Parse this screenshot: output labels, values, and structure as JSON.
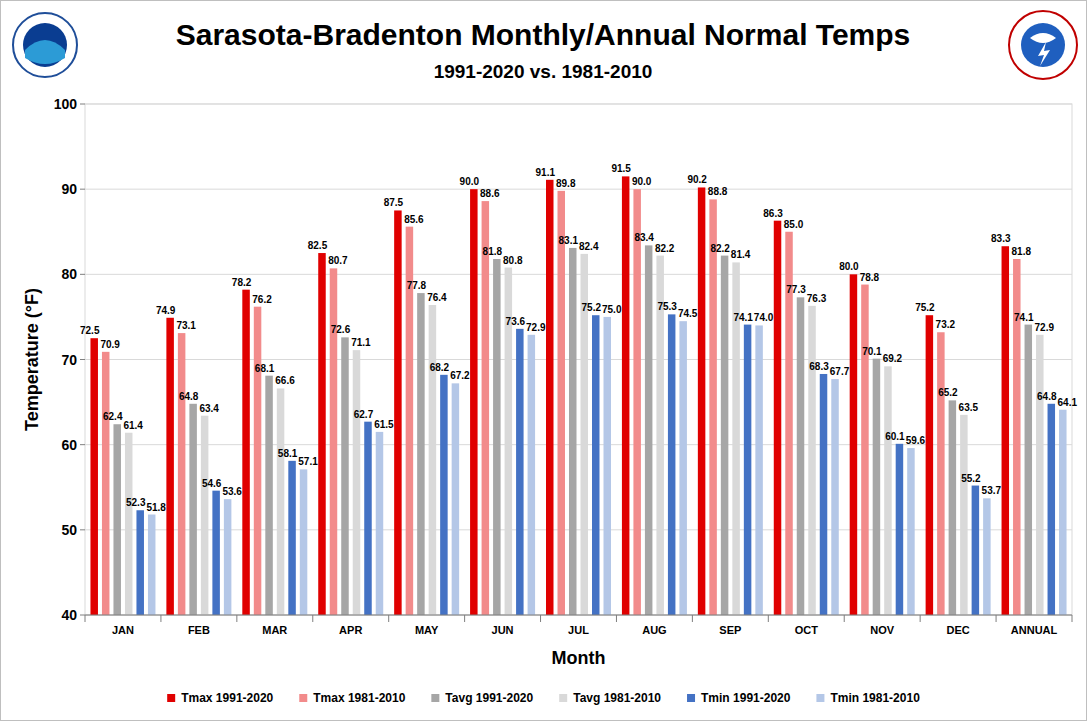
{
  "chart_data": {
    "type": "bar",
    "title": "Sarasota-Bradenton Monthly/Annual Normal Temps",
    "subtitle": "1991-2020 vs. 1981-2010",
    "x_label": "Month",
    "y_label": "Temperature (°F)",
    "categories": [
      "JAN",
      "FEB",
      "MAR",
      "APR",
      "MAY",
      "JUN",
      "JUL",
      "AUG",
      "SEP",
      "OCT",
      "NOV",
      "DEC",
      "ANNUAL"
    ],
    "series": [
      {
        "name": "Tmax 1991-2020",
        "color": "#e00000",
        "values": [
          72.5,
          74.9,
          78.2,
          82.5,
          87.5,
          90.0,
          91.1,
          91.5,
          90.2,
          86.3,
          80.0,
          75.2,
          83.3
        ],
        "value_labels": [
          "72.5",
          "74.9",
          "78.2",
          "82.5",
          "87.5",
          "90.0",
          "91.1",
          "91.5",
          "90.2",
          "86.3",
          "80.0",
          "75.2",
          "83.3"
        ]
      },
      {
        "name": "Tmax 1981-2010",
        "color": "#f28b8b",
        "values": [
          70.9,
          73.1,
          76.2,
          80.7,
          85.6,
          88.6,
          89.8,
          90.0,
          88.8,
          85.0,
          78.8,
          73.2,
          81.8
        ],
        "value_labels": [
          "70.9",
          "73.1",
          "76.2",
          "80.7",
          "85.6",
          "88.6",
          "89.8",
          "90.0",
          "88.8",
          "85.0",
          "78.8",
          "73.2",
          "81.8"
        ]
      },
      {
        "name": "Tavg 1991-2020",
        "color": "#a6a6a6",
        "values": [
          62.4,
          64.8,
          68.1,
          72.6,
          77.8,
          81.8,
          83.1,
          83.4,
          82.2,
          77.3,
          70.1,
          65.2,
          74.1
        ],
        "value_labels": [
          "62.4",
          "64.8",
          "68.1",
          "72.6",
          "77.8",
          "81.8",
          "83.1",
          "83.4",
          "82.2",
          "77.3",
          "70.1",
          "65.2",
          "74.1"
        ]
      },
      {
        "name": "Tavg 1981-2010",
        "color": "#d9d9d9",
        "values": [
          61.4,
          63.4,
          66.6,
          71.1,
          76.4,
          80.8,
          82.4,
          82.2,
          81.4,
          76.3,
          69.2,
          63.5,
          72.9
        ],
        "value_labels": [
          "61.4",
          "63.4",
          "66.6",
          "71.1",
          "76.4",
          "80.8",
          "82.4",
          "82.2",
          "81.4",
          "76.3",
          "69.2",
          "63.5",
          "72.9"
        ]
      },
      {
        "name": "Tmin 1991-2020",
        "color": "#4472c4",
        "values": [
          52.3,
          54.6,
          58.1,
          62.7,
          68.2,
          73.6,
          75.2,
          75.3,
          74.1,
          68.3,
          60.1,
          55.2,
          64.8
        ],
        "value_labels": [
          "52.3",
          "54.6",
          "58.1",
          "62.7",
          "68.2",
          "73.6",
          "75.2",
          "75.3",
          "74.1",
          "68.3",
          "60.1",
          "55.2",
          "64.8"
        ]
      },
      {
        "name": "Tmin 1981-2010",
        "color": "#b4c7e7",
        "values": [
          51.8,
          53.6,
          57.1,
          61.5,
          67.2,
          72.9,
          75.0,
          74.5,
          74.0,
          67.7,
          59.6,
          53.7,
          64.1
        ],
        "value_labels": [
          "51.8",
          "53.6",
          "57.1",
          "61.5",
          "67.2",
          "72.9",
          "75.0",
          "74.5",
          "74.0",
          "67.7",
          "59.6",
          "53.7",
          "64.1"
        ]
      }
    ],
    "ylim": [
      40,
      100
    ],
    "yticks": [
      40,
      50,
      60,
      70,
      80,
      90,
      100
    ],
    "grid": true,
    "legend": "bottom",
    "data_labels": true
  }
}
